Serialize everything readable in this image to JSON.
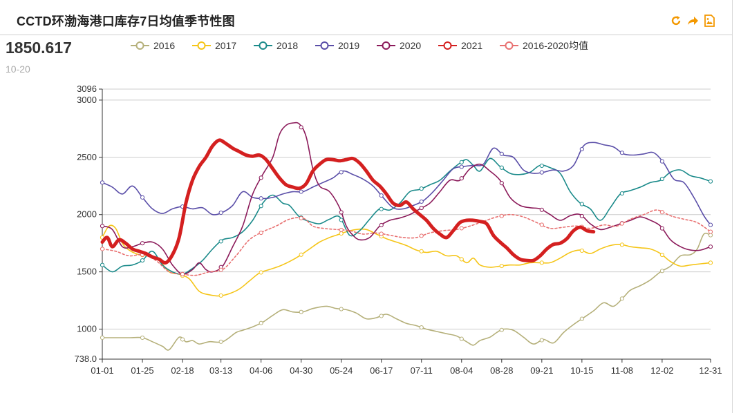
{
  "header": {
    "title": "CCTD环渤海港口库存7日均值季节性图",
    "tools": [
      "refresh-icon",
      "share-icon",
      "save-image-icon"
    ],
    "tool_color": "#f39800"
  },
  "summary": {
    "latest_value": "1850.617",
    "latest_date": "10-20"
  },
  "chart_data": {
    "type": "line",
    "title": "CCTD环渤海港口库存7日均值季节性图",
    "xlabel": "",
    "ylabel": "",
    "ylim": [
      738.0,
      3096
    ],
    "y_ticks": [
      "738.0",
      "1000",
      "1500",
      "2000",
      "2500",
      "3000",
      "3096"
    ],
    "y_gridlines": [
      1000,
      1500,
      2000,
      2500,
      3000,
      3096
    ],
    "x_ticks": [
      "01-01",
      "01-25",
      "02-18",
      "03-13",
      "04-06",
      "04-30",
      "05-24",
      "06-17",
      "07-11",
      "08-04",
      "08-28",
      "09-21",
      "10-15",
      "11-08",
      "12-02",
      "12-31"
    ],
    "x_tick_days": [
      0,
      24,
      48,
      71,
      95,
      119,
      143,
      167,
      191,
      215,
      239,
      263,
      287,
      311,
      335,
      364
    ],
    "x_units": "day of year (0 = 01-01)",
    "legend_position": "top",
    "series": [
      {
        "name": "2016",
        "color": "#b5b07a",
        "width": 1.6,
        "dash": "",
        "x": [
          0,
          8,
          16,
          24,
          30,
          36,
          40,
          46,
          50,
          54,
          58,
          64,
          72,
          80,
          84,
          90,
          96,
          102,
          108,
          114,
          120,
          126,
          134,
          140,
          146,
          152,
          158,
          164,
          170,
          176,
          182,
          188,
          194,
          200,
          206,
          212,
          218,
          222,
          226,
          232,
          236,
          240,
          246,
          252,
          258,
          264,
          270,
          276,
          282,
          288,
          294,
          300,
          306,
          312,
          316,
          322,
          328,
          334,
          340,
          346,
          352,
          356,
          360,
          364
        ],
        "y": [
          925,
          925,
          925,
          925,
          890,
          850,
          820,
          930,
          890,
          900,
          870,
          890,
          890,
          970,
          990,
          1020,
          1060,
          1120,
          1170,
          1150,
          1150,
          1180,
          1200,
          1180,
          1170,
          1140,
          1090,
          1100,
          1130,
          1090,
          1050,
          1030,
          1000,
          980,
          960,
          940,
          890,
          860,
          900,
          930,
          970,
          1000,
          990,
          930,
          870,
          910,
          880,
          970,
          1040,
          1100,
          1160,
          1230,
          1200,
          1280,
          1340,
          1380,
          1430,
          1500,
          1550,
          1640,
          1650,
          1700,
          1830,
          1820
        ]
      },
      {
        "name": "2017",
        "color": "#f5c518",
        "width": 1.6,
        "dash": "",
        "x": [
          0,
          4,
          8,
          12,
          16,
          22,
          28,
          34,
          40,
          46,
          52,
          58,
          64,
          70,
          76,
          82,
          88,
          94,
          100,
          106,
          112,
          118,
          124,
          130,
          136,
          140,
          146,
          152,
          158,
          164,
          170,
          176,
          182,
          188,
          194,
          200,
          206,
          212,
          218,
          222,
          226,
          232,
          238,
          244,
          250,
          256,
          262,
          268,
          274,
          280,
          286,
          292,
          298,
          304,
          310,
          316,
          322,
          328,
          334,
          340,
          346,
          352,
          358,
          364
        ],
        "y": [
          1800,
          1900,
          1880,
          1750,
          1690,
          1650,
          1640,
          1600,
          1500,
          1480,
          1440,
          1330,
          1300,
          1290,
          1310,
          1350,
          1420,
          1490,
          1520,
          1550,
          1590,
          1640,
          1700,
          1760,
          1800,
          1820,
          1850,
          1870,
          1870,
          1830,
          1790,
          1760,
          1730,
          1690,
          1670,
          1680,
          1640,
          1640,
          1580,
          1620,
          1560,
          1540,
          1550,
          1560,
          1560,
          1580,
          1580,
          1580,
          1620,
          1670,
          1690,
          1660,
          1700,
          1730,
          1740,
          1720,
          1710,
          1700,
          1660,
          1590,
          1550,
          1560,
          1570,
          1580
        ]
      },
      {
        "name": "2018",
        "color": "#1a8a8a",
        "width": 1.6,
        "dash": "",
        "x": [
          0,
          6,
          12,
          18,
          24,
          30,
          36,
          42,
          48,
          54,
          60,
          66,
          72,
          78,
          84,
          90,
          96,
          102,
          108,
          112,
          118,
          124,
          130,
          136,
          142,
          148,
          154,
          160,
          166,
          172,
          178,
          184,
          190,
          196,
          202,
          208,
          214,
          218,
          222,
          226,
          232,
          238,
          244,
          250,
          256,
          262,
          268,
          274,
          280,
          286,
          292,
          298,
          304,
          310,
          316,
          322,
          328,
          334,
          340,
          346,
          352,
          358,
          364
        ],
        "y": [
          1560,
          1500,
          1550,
          1560,
          1600,
          1680,
          1560,
          1500,
          1480,
          1530,
          1600,
          1700,
          1780,
          1800,
          1850,
          1950,
          2100,
          2170,
          2100,
          2080,
          1980,
          1940,
          1920,
          1960,
          1980,
          1820,
          1860,
          1960,
          2050,
          2040,
          2100,
          2200,
          2220,
          2260,
          2300,
          2380,
          2450,
          2480,
          2430,
          2380,
          2490,
          2420,
          2360,
          2350,
          2370,
          2430,
          2410,
          2360,
          2200,
          2100,
          2050,
          1950,
          2060,
          2180,
          2210,
          2240,
          2280,
          2300,
          2370,
          2390,
          2340,
          2320,
          2290
        ]
      },
      {
        "name": "2019",
        "color": "#5a4ea8",
        "width": 1.6,
        "dash": "",
        "x": [
          0,
          6,
          12,
          18,
          24,
          30,
          36,
          42,
          48,
          54,
          60,
          66,
          72,
          78,
          84,
          90,
          96,
          102,
          108,
          114,
          120,
          126,
          132,
          138,
          144,
          150,
          156,
          162,
          168,
          174,
          180,
          186,
          192,
          198,
          204,
          210,
          216,
          222,
          228,
          234,
          240,
          246,
          252,
          258,
          264,
          270,
          276,
          282,
          288,
          294,
          300,
          306,
          312,
          318,
          324,
          330,
          336,
          342,
          348,
          354,
          360,
          364
        ],
        "y": [
          2280,
          2240,
          2180,
          2250,
          2150,
          2050,
          2010,
          2050,
          2070,
          2050,
          2060,
          2000,
          2020,
          2080,
          2200,
          2150,
          2140,
          2150,
          2180,
          2200,
          2200,
          2240,
          2280,
          2320,
          2380,
          2350,
          2310,
          2250,
          2150,
          2060,
          2050,
          2080,
          2120,
          2200,
          2300,
          2400,
          2420,
          2430,
          2440,
          2580,
          2520,
          2500,
          2390,
          2360,
          2370,
          2390,
          2380,
          2430,
          2600,
          2630,
          2610,
          2590,
          2530,
          2520,
          2530,
          2540,
          2450,
          2310,
          2280,
          2150,
          1990,
          1910
        ]
      },
      {
        "name": "2020",
        "color": "#8b1a5a",
        "width": 1.6,
        "dash": "",
        "x": [
          0,
          6,
          12,
          18,
          24,
          30,
          36,
          42,
          48,
          54,
          58,
          62,
          66,
          72,
          78,
          84,
          90,
          96,
          102,
          106,
          110,
          114,
          118,
          122,
          126,
          130,
          136,
          142,
          146,
          150,
          154,
          160,
          166,
          172,
          178,
          184,
          190,
          196,
          202,
          208,
          214,
          220,
          226,
          232,
          238,
          244,
          250,
          256,
          262,
          268,
          274,
          280,
          286,
          292,
          298,
          304,
          310,
          316,
          322,
          328,
          334,
          340,
          346,
          352,
          358,
          364
        ],
        "y": [
          1900,
          1870,
          1720,
          1720,
          1750,
          1760,
          1700,
          1560,
          1480,
          1520,
          1580,
          1520,
          1500,
          1550,
          1720,
          1900,
          2180,
          2350,
          2500,
          2700,
          2780,
          2800,
          2790,
          2680,
          2400,
          2250,
          2200,
          2060,
          1900,
          1820,
          1780,
          1800,
          1900,
          1950,
          1970,
          2000,
          2050,
          2100,
          2200,
          2300,
          2300,
          2400,
          2440,
          2380,
          2300,
          2150,
          2080,
          2060,
          2050,
          2000,
          1950,
          1990,
          2000,
          1920,
          1870,
          1890,
          1920,
          1950,
          1980,
          1950,
          1900,
          1780,
          1720,
          1690,
          1690,
          1720
        ]
      },
      {
        "name": "2021",
        "color": "#d42020",
        "width": 5,
        "dash": "",
        "x": [
          0,
          3,
          6,
          10,
          14,
          18,
          22,
          26,
          30,
          34,
          38,
          42,
          46,
          50,
          54,
          58,
          62,
          66,
          70,
          74,
          78,
          82,
          86,
          90,
          94,
          98,
          102,
          106,
          110,
          114,
          118,
          122,
          126,
          130,
          134,
          138,
          142,
          146,
          150,
          154,
          158,
          162,
          166,
          170,
          174,
          178,
          182,
          186,
          190,
          194,
          198,
          202,
          206,
          210,
          214,
          218,
          222,
          226,
          230,
          234,
          238,
          242,
          246,
          250,
          254,
          258,
          262,
          266,
          270,
          274,
          278,
          282,
          286,
          290,
          294
        ],
        "y": [
          1760,
          1800,
          1720,
          1780,
          1750,
          1700,
          1680,
          1660,
          1630,
          1610,
          1580,
          1650,
          1800,
          2100,
          2300,
          2420,
          2500,
          2600,
          2650,
          2620,
          2580,
          2550,
          2520,
          2510,
          2520,
          2480,
          2400,
          2320,
          2260,
          2240,
          2230,
          2270,
          2380,
          2440,
          2480,
          2480,
          2470,
          2480,
          2490,
          2450,
          2380,
          2300,
          2250,
          2180,
          2100,
          2080,
          2110,
          2050,
          2000,
          1950,
          1880,
          1830,
          1800,
          1860,
          1930,
          1950,
          1950,
          1940,
          1920,
          1820,
          1760,
          1710,
          1650,
          1610,
          1600,
          1600,
          1640,
          1700,
          1740,
          1750,
          1790,
          1860,
          1890,
          1860,
          1850
        ]
      },
      {
        "name": "2016-2020均值",
        "color": "#e87070",
        "width": 1.6,
        "dash": "3,3",
        "x": [
          0,
          8,
          16,
          24,
          32,
          40,
          48,
          56,
          64,
          72,
          80,
          88,
          96,
          104,
          112,
          120,
          126,
          132,
          140,
          148,
          156,
          164,
          172,
          180,
          188,
          196,
          204,
          212,
          220,
          228,
          236,
          244,
          252,
          260,
          268,
          276,
          284,
          292,
          300,
          308,
          316,
          324,
          332,
          340,
          348,
          356,
          364
        ],
        "y": [
          1700,
          1680,
          1640,
          1650,
          1600,
          1500,
          1480,
          1470,
          1500,
          1520,
          1640,
          1780,
          1850,
          1900,
          1960,
          1970,
          1900,
          1880,
          1870,
          1860,
          1830,
          1840,
          1820,
          1800,
          1800,
          1840,
          1860,
          1870,
          1900,
          1940,
          1980,
          2000,
          1980,
          1930,
          1880,
          1890,
          1900,
          1880,
          1910,
          1900,
          1960,
          2000,
          2040,
          1990,
          1960,
          1930,
          1850
        ]
      }
    ]
  }
}
